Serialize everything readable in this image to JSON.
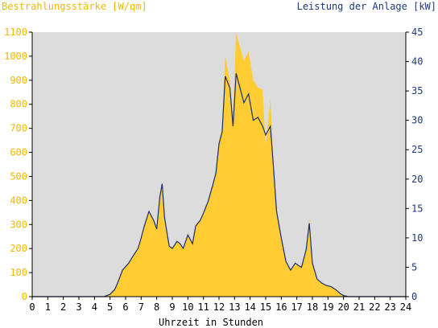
{
  "chart_data": {
    "type": "area",
    "title_left": "Bestrahlungsstärke [W/qm]",
    "title_right": "Leistung der Anlage [kW]",
    "xlabel": "Uhrzeit in Stunden",
    "xlim": [
      0,
      24
    ],
    "ylim_left": [
      0,
      1100
    ],
    "ylim_right": [
      0,
      45
    ],
    "x_ticks": [
      "0",
      "1",
      "2",
      "3",
      "4",
      "5",
      "6",
      "7",
      "8",
      "9",
      "10",
      "11",
      "12",
      "13",
      "14",
      "15",
      "16",
      "17",
      "18",
      "19",
      "20",
      "21",
      "22",
      "23",
      "24"
    ],
    "y_ticks_left": [
      "0",
      "100",
      "200",
      "300",
      "400",
      "500",
      "600",
      "700",
      "800",
      "900",
      "1000",
      "1100"
    ],
    "y_ticks_right": [
      "0",
      "5",
      "10",
      "15",
      "20",
      "25",
      "30",
      "35",
      "40",
      "45"
    ],
    "colors": {
      "irradiance": "#ffcc33",
      "power": "#1a2f6b",
      "plot_bg": "#dcdcdc",
      "left_axis_text": "#f2b705",
      "right_axis_text": "#1f3a7a"
    },
    "series": [
      {
        "name": "Bestrahlungsstärke",
        "axis": "left",
        "x": [
          0,
          4.6,
          5.0,
          5.3,
          5.5,
          5.8,
          6.2,
          6.5,
          6.8,
          7.0,
          7.2,
          7.5,
          7.8,
          8.0,
          8.2,
          8.35,
          8.5,
          8.8,
          9.0,
          9.3,
          9.5,
          9.7,
          10.0,
          10.3,
          10.5,
          10.8,
          11.0,
          11.3,
          11.6,
          11.8,
          12.0,
          12.2,
          12.4,
          12.7,
          12.9,
          13.1,
          13.3,
          13.6,
          13.9,
          14.2,
          14.5,
          14.8,
          15.0,
          15.3,
          15.5,
          15.7,
          16.0,
          16.3,
          16.6,
          16.9,
          17.1,
          17.3,
          17.6,
          17.8,
          18.0,
          18.3,
          18.6,
          18.9,
          19.2,
          19.5,
          19.8,
          20.0,
          20.3,
          24
        ],
        "values": [
          0,
          0,
          10,
          30,
          60,
          110,
          140,
          170,
          200,
          250,
          300,
          350,
          320,
          280,
          420,
          470,
          330,
          210,
          200,
          230,
          220,
          200,
          260,
          220,
          300,
          320,
          350,
          400,
          470,
          520,
          650,
          700,
          1000,
          900,
          750,
          1100,
          1050,
          980,
          1020,
          900,
          870,
          860,
          630,
          820,
          550,
          350,
          250,
          150,
          110,
          140,
          130,
          120,
          200,
          330,
          140,
          70,
          55,
          45,
          40,
          30,
          10,
          5,
          0,
          0
        ]
      },
      {
        "name": "Leistung",
        "axis": "right",
        "x": [
          0,
          4.6,
          5.0,
          5.3,
          5.5,
          5.8,
          6.2,
          6.5,
          6.8,
          7.0,
          7.2,
          7.5,
          7.8,
          8.0,
          8.2,
          8.35,
          8.5,
          8.8,
          9.0,
          9.3,
          9.5,
          9.7,
          10.0,
          10.3,
          10.5,
          10.8,
          11.0,
          11.3,
          11.6,
          11.8,
          12.0,
          12.2,
          12.4,
          12.7,
          12.9,
          13.1,
          13.3,
          13.6,
          13.9,
          14.2,
          14.5,
          14.8,
          15.0,
          15.3,
          15.5,
          15.7,
          16.0,
          16.3,
          16.6,
          16.9,
          17.1,
          17.3,
          17.6,
          17.8,
          18.0,
          18.3,
          18.6,
          18.9,
          19.2,
          19.5,
          19.8,
          20.0,
          20.3,
          24
        ],
        "values": [
          0,
          0,
          0.4,
          1.2,
          2.4,
          4.5,
          5.7,
          7,
          8.2,
          10,
          12,
          14.5,
          13,
          11.5,
          17,
          19.2,
          13.5,
          8.6,
          8.2,
          9.4,
          9,
          8.2,
          10.5,
          9,
          12,
          13,
          14.2,
          16.2,
          19,
          21,
          26,
          28,
          37.5,
          35.5,
          29,
          38,
          36,
          33,
          34.5,
          30,
          30.5,
          29,
          27.5,
          29,
          22,
          14.5,
          10,
          6,
          4.5,
          5.7,
          5.3,
          5,
          8,
          12.5,
          5.7,
          3,
          2.3,
          1.9,
          1.7,
          1.2,
          0.5,
          0.2,
          0,
          0
        ]
      }
    ]
  }
}
